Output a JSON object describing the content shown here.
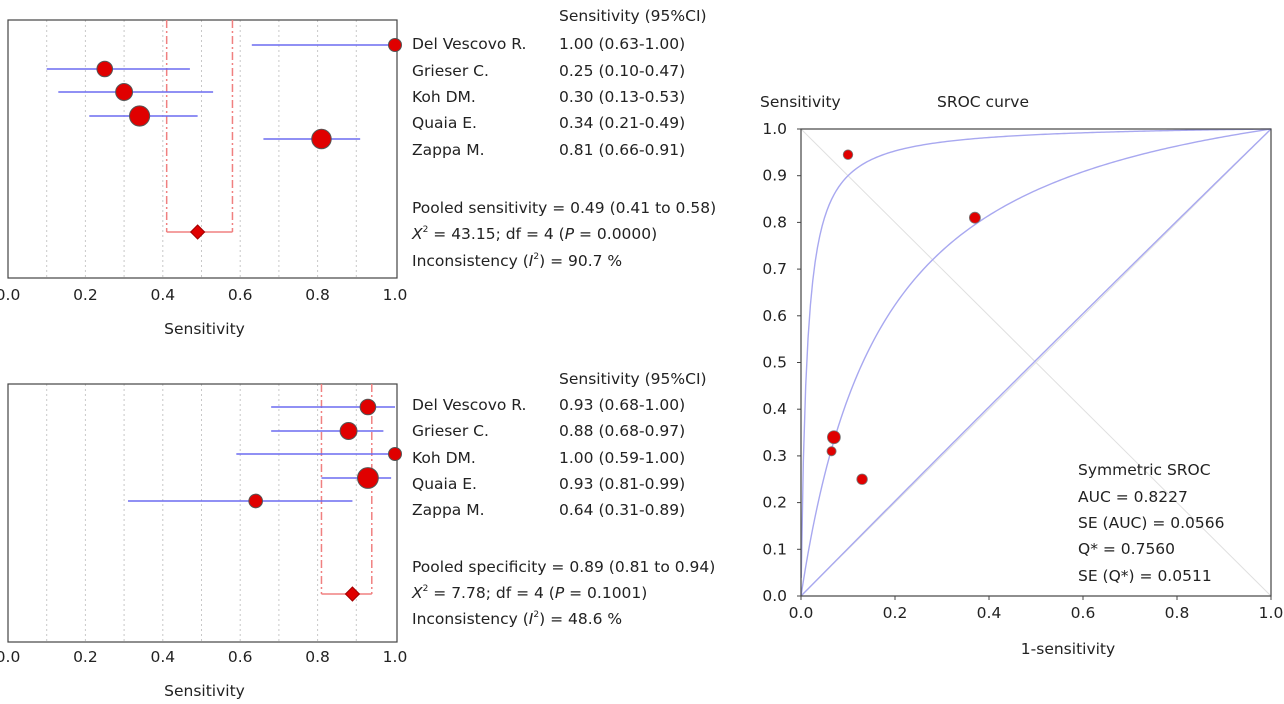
{
  "chart_data": [
    {
      "type": "forest",
      "column_header": "Sensitivity (95%CI)",
      "studies": [
        "Del Vescovo R.",
        "Grieser C.",
        "Koh DM.",
        "Quaia E.",
        "Zappa M."
      ],
      "estimates": [
        1.0,
        0.25,
        0.3,
        0.34,
        0.81
      ],
      "ci_low": [
        0.63,
        0.1,
        0.13,
        0.21,
        0.66
      ],
      "ci_high": [
        1.0,
        0.47,
        0.53,
        0.49,
        0.91
      ],
      "ci_text": [
        "1.00 (0.63-1.00)",
        "0.25 (0.10-0.47)",
        "0.30 (0.13-0.53)",
        "0.34 (0.21-0.49)",
        "0.81 (0.66-0.91)"
      ],
      "weights": [
        1.0,
        1.2,
        1.3,
        1.55,
        1.5
      ],
      "pooled": {
        "estimate": 0.49,
        "low": 0.41,
        "high": 0.58
      },
      "stats": {
        "line1": "Pooled sensitivity = 0.49 (0.41 to 0.58)",
        "chi_sym": "X",
        "chi_sup": "2",
        "chi_rest_a": " = 43.15; df = 4 (",
        "chi_p": "P",
        "chi_rest_b": " = 0.0000)",
        "inc_a": "Inconsistency (",
        "inc_i": "I",
        "inc_sup": "2",
        "inc_b": ") = 90.7 %"
      },
      "xlabel": "Sensitivity",
      "xlim": [
        0,
        1
      ],
      "xticks": [
        "0.0",
        "0.2",
        "0.4",
        "0.6",
        "0.8",
        "1.0"
      ],
      "grid": true
    },
    {
      "type": "forest",
      "column_header": "Sensitivity (95%CI)",
      "studies": [
        "Del Vescovo R.",
        "Grieser C.",
        "Koh DM.",
        "Quaia E.",
        "Zappa M."
      ],
      "estimates": [
        0.93,
        0.88,
        1.0,
        0.93,
        0.64
      ],
      "ci_low": [
        0.68,
        0.68,
        0.59,
        0.81,
        0.31
      ],
      "ci_high": [
        1.0,
        0.97,
        1.0,
        0.99,
        0.89
      ],
      "ci_text": [
        "0.93 (0.68-1.00)",
        "0.88 (0.68-0.97)",
        "1.00 (0.59-1.00)",
        "0.93 (0.81-0.99)",
        "0.64 (0.31-0.89)"
      ],
      "weights": [
        1.2,
        1.3,
        1.0,
        1.6,
        1.05
      ],
      "pooled": {
        "estimate": 0.89,
        "low": 0.81,
        "high": 0.94
      },
      "stats": {
        "line1": "Pooled specificity = 0.89 (0.81 to 0.94)",
        "chi_sym": "X",
        "chi_sup": "2",
        "chi_rest_a": " = 7.78; df = 4 (",
        "chi_p": "P",
        "chi_rest_b": " = 0.1001)",
        "inc_a": "Inconsistency (",
        "inc_i": "I",
        "inc_sup": "2",
        "inc_b": ") = 48.6 %"
      },
      "xlabel": "Sensitivity",
      "xlim": [
        0,
        1
      ],
      "xticks": [
        "0.0",
        "0.2",
        "0.4",
        "0.6",
        "0.8",
        "1.0"
      ],
      "grid": true
    },
    {
      "type": "scatter",
      "title": "SROC curve",
      "ylabel": "Sensitivity",
      "xlabel": "1-sensitivity",
      "xlim": [
        0,
        1
      ],
      "ylim": [
        0,
        1
      ],
      "xticks": [
        "0.0",
        "0.2",
        "0.4",
        "0.6",
        "0.8",
        "1.0"
      ],
      "yticks": [
        "0.0",
        "0.1",
        "0.2",
        "0.3",
        "0.4",
        "0.5",
        "0.6",
        "0.7",
        "0.8",
        "0.9",
        "1.0"
      ],
      "points": [
        {
          "x": 0.1,
          "y": 0.945,
          "weight": 1.0
        },
        {
          "x": 0.37,
          "y": 0.81,
          "weight": 1.15
        },
        {
          "x": 0.07,
          "y": 0.34,
          "weight": 1.35
        },
        {
          "x": 0.065,
          "y": 0.31,
          "weight": 0.95
        },
        {
          "x": 0.13,
          "y": 0.25,
          "weight": 1.1
        }
      ],
      "curve_auc_param": 0.8227,
      "stats": {
        "header": "Symmetric SROC",
        "auc": "AUC = 0.8227",
        "se_auc": "SE (AUC) = 0.0566",
        "q": "Q* = 0.7560",
        "se_q": "SE (Q*) = 0.0511"
      },
      "grid": false
    }
  ],
  "colors": {
    "marker": "#e00000",
    "ci_line": "#6b6bf0",
    "pooled": "#f08080",
    "grid": "#c8c8c8",
    "sroc_curve": "#a8a8f0",
    "diagonal": "#e0e0e0"
  }
}
